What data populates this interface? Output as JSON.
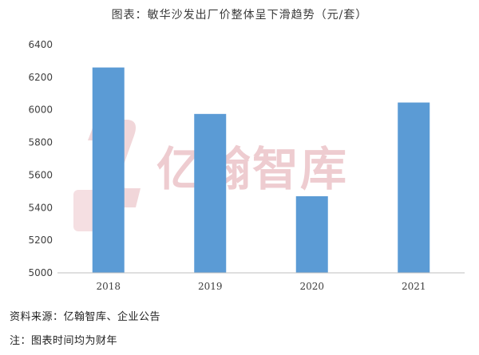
{
  "title": "图表：敏华沙发出厂价整体呈下滑趋势（元/套）",
  "watermark": "亿翰智库",
  "source": "资料来源：亿翰智库、企业公告",
  "note": "注：图表时间均为财年",
  "colors": {
    "bar": "#5b9bd5",
    "grid": "#d9d9d9",
    "axis": "#bfbfbf",
    "watermark": "#e1a4ab"
  },
  "chart_data": {
    "type": "bar",
    "title": "图表：敏华沙发出厂价整体呈下滑趋势（元/套）",
    "categories": [
      "2018",
      "2019",
      "2020",
      "2021"
    ],
    "values": [
      6260,
      5975,
      5470,
      6045
    ],
    "ylim": [
      5000,
      6400
    ],
    "yticks": [
      5000,
      5200,
      5400,
      5600,
      5800,
      6000,
      6200,
      6400
    ],
    "grid": false,
    "legend": "none"
  }
}
